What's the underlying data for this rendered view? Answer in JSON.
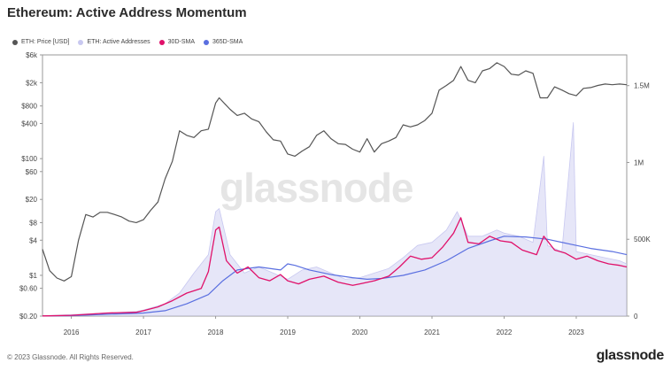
{
  "title": "Ethereum: Active Address Momentum",
  "legend": [
    {
      "label": "ETH: Price [USD]",
      "color": "#555555",
      "icon": "dot"
    },
    {
      "label": "ETH: Active Addresses",
      "color": "#c8c8f0",
      "icon": "dot"
    },
    {
      "label": "30D-SMA",
      "color": "#e0116a",
      "icon": "dot"
    },
    {
      "label": "365D-SMA",
      "color": "#5a6fe0",
      "icon": "dot"
    }
  ],
  "watermark": "glassnode",
  "footer": {
    "copyright": "© 2023 Glassnode. All Rights Reserved.",
    "brand": "glassnode"
  },
  "colors": {
    "price": "#555555",
    "active": "#c8c8f0",
    "sma30": "#e0116a",
    "sma365": "#5a6fe0"
  },
  "chart_data": {
    "type": "line",
    "title": "Ethereum: Active Address Momentum",
    "x_ticks": [
      "2016",
      "2017",
      "2018",
      "2019",
      "2020",
      "2021",
      "2022",
      "2023"
    ],
    "x_range": [
      2015.6,
      2023.7
    ],
    "y_left": {
      "scale": "log",
      "range": [
        0.2,
        6000
      ],
      "ticks": [
        "$6k",
        "$2k",
        "$800",
        "$400",
        "$100",
        "$60",
        "$20",
        "$8",
        "$4",
        "$1",
        "$0.60",
        "$0.20"
      ],
      "tick_values": [
        6000,
        2000,
        800,
        400,
        100,
        60,
        20,
        8,
        4,
        1,
        0.6,
        0.2
      ]
    },
    "y_right": {
      "scale": "linear",
      "range": [
        0,
        1700000
      ],
      "ticks": [
        "1.5M",
        "1M",
        "500K",
        "0"
      ],
      "tick_values": [
        1500000,
        1000000,
        500000,
        0
      ]
    },
    "grid": false,
    "legend_position": "top-left",
    "series": [
      {
        "name": "ETH: Price [USD]",
        "axis": "left",
        "x": [
          2015.6,
          2015.7,
          2015.8,
          2015.9,
          2016.0,
          2016.1,
          2016.2,
          2016.3,
          2016.4,
          2016.5,
          2016.6,
          2016.7,
          2016.8,
          2016.9,
          2017.0,
          2017.1,
          2017.2,
          2017.3,
          2017.4,
          2017.5,
          2017.6,
          2017.7,
          2017.8,
          2017.9,
          2018.0,
          2018.05,
          2018.2,
          2018.3,
          2018.4,
          2018.5,
          2018.6,
          2018.7,
          2018.8,
          2018.9,
          2019.0,
          2019.1,
          2019.2,
          2019.3,
          2019.4,
          2019.5,
          2019.6,
          2019.7,
          2019.8,
          2019.9,
          2020.0,
          2020.1,
          2020.2,
          2020.3,
          2020.4,
          2020.5,
          2020.6,
          2020.7,
          2020.8,
          2020.9,
          2021.0,
          2021.1,
          2021.2,
          2021.3,
          2021.4,
          2021.5,
          2021.6,
          2021.7,
          2021.8,
          2021.9,
          2022.0,
          2022.1,
          2022.2,
          2022.3,
          2022.4,
          2022.5,
          2022.6,
          2022.7,
          2022.8,
          2022.9,
          2023.0,
          2023.1,
          2023.2,
          2023.3,
          2023.4,
          2023.5,
          2023.6,
          2023.7
        ],
        "y": [
          2.8,
          1.2,
          0.9,
          0.8,
          0.95,
          4,
          11,
          10,
          12,
          12,
          11,
          10,
          8.5,
          8,
          9,
          13,
          18,
          45,
          90,
          300,
          250,
          230,
          300,
          320,
          900,
          1100,
          700,
          550,
          600,
          480,
          430,
          290,
          210,
          200,
          120,
          110,
          135,
          160,
          250,
          300,
          220,
          180,
          175,
          145,
          130,
          220,
          130,
          180,
          200,
          230,
          380,
          350,
          380,
          450,
          600,
          1500,
          1800,
          2200,
          3800,
          2200,
          2000,
          3200,
          3500,
          4400,
          3800,
          2800,
          2700,
          3200,
          2900,
          1100,
          1100,
          1700,
          1500,
          1300,
          1200,
          1600,
          1650,
          1800,
          1900,
          1850,
          1900,
          1850
        ]
      },
      {
        "name": "ETH: Active Addresses",
        "axis": "right",
        "x": [
          2015.6,
          2016.0,
          2016.5,
          2016.9,
          2017.0,
          2017.3,
          2017.5,
          2017.7,
          2017.9,
          2018.0,
          2018.05,
          2018.2,
          2018.4,
          2018.6,
          2018.8,
          2019.0,
          2019.2,
          2019.4,
          2019.6,
          2019.8,
          2020.0,
          2020.2,
          2020.4,
          2020.6,
          2020.8,
          2021.0,
          2021.2,
          2021.35,
          2021.5,
          2021.7,
          2021.9,
          2022.0,
          2022.2,
          2022.4,
          2022.55,
          2022.6,
          2022.8,
          2022.96,
          2023.0,
          2023.2,
          2023.4,
          2023.6,
          2023.7
        ],
        "y": [
          2000,
          10000,
          20000,
          30000,
          40000,
          80000,
          150000,
          280000,
          400000,
          680000,
          700000,
          400000,
          280000,
          320000,
          280000,
          240000,
          300000,
          320000,
          280000,
          240000,
          250000,
          280000,
          310000,
          380000,
          460000,
          480000,
          560000,
          680000,
          520000,
          520000,
          560000,
          540000,
          520000,
          480000,
          1040000,
          460000,
          420000,
          1260000,
          420000,
          400000,
          380000,
          360000,
          340000
        ]
      },
      {
        "name": "30D-SMA",
        "axis": "right",
        "x": [
          2015.6,
          2016.0,
          2016.5,
          2016.9,
          2017.0,
          2017.2,
          2017.4,
          2017.6,
          2017.8,
          2017.9,
          2018.0,
          2018.05,
          2018.15,
          2018.3,
          2018.45,
          2018.6,
          2018.75,
          2018.9,
          2019.0,
          2019.15,
          2019.3,
          2019.5,
          2019.7,
          2019.9,
          2020.0,
          2020.2,
          2020.4,
          2020.55,
          2020.7,
          2020.85,
          2021.0,
          2021.15,
          2021.3,
          2021.4,
          2021.5,
          2021.65,
          2021.8,
          2021.95,
          2022.1,
          2022.25,
          2022.45,
          2022.55,
          2022.7,
          2022.85,
          2023.0,
          2023.15,
          2023.3,
          2023.45,
          2023.6,
          2023.7
        ],
        "y": [
          1000,
          5000,
          20000,
          25000,
          35000,
          60000,
          100000,
          150000,
          180000,
          290000,
          560000,
          580000,
          360000,
          280000,
          320000,
          250000,
          230000,
          270000,
          230000,
          210000,
          240000,
          260000,
          220000,
          200000,
          210000,
          230000,
          260000,
          320000,
          390000,
          370000,
          380000,
          450000,
          540000,
          640000,
          480000,
          470000,
          520000,
          490000,
          480000,
          430000,
          400000,
          520000,
          430000,
          410000,
          370000,
          390000,
          360000,
          340000,
          330000,
          320000
        ]
      },
      {
        "name": "365D-SMA",
        "axis": "right",
        "x": [
          2015.6,
          2016.0,
          2016.5,
          2016.9,
          2017.0,
          2017.3,
          2017.6,
          2017.9,
          2018.1,
          2018.3,
          2018.6,
          2018.9,
          2019.0,
          2019.1,
          2019.3,
          2019.6,
          2019.9,
          2020.1,
          2020.3,
          2020.6,
          2020.9,
          2021.2,
          2021.5,
          2021.8,
          2022.0,
          2022.3,
          2022.6,
          2022.9,
          2023.2,
          2023.5,
          2023.7
        ],
        "y": [
          1000,
          3000,
          12000,
          18000,
          20000,
          35000,
          80000,
          140000,
          230000,
          300000,
          320000,
          300000,
          340000,
          330000,
          300000,
          270000,
          250000,
          240000,
          245000,
          265000,
          300000,
          360000,
          440000,
          490000,
          520000,
          515000,
          500000,
          470000,
          440000,
          420000,
          400000
        ]
      }
    ]
  }
}
